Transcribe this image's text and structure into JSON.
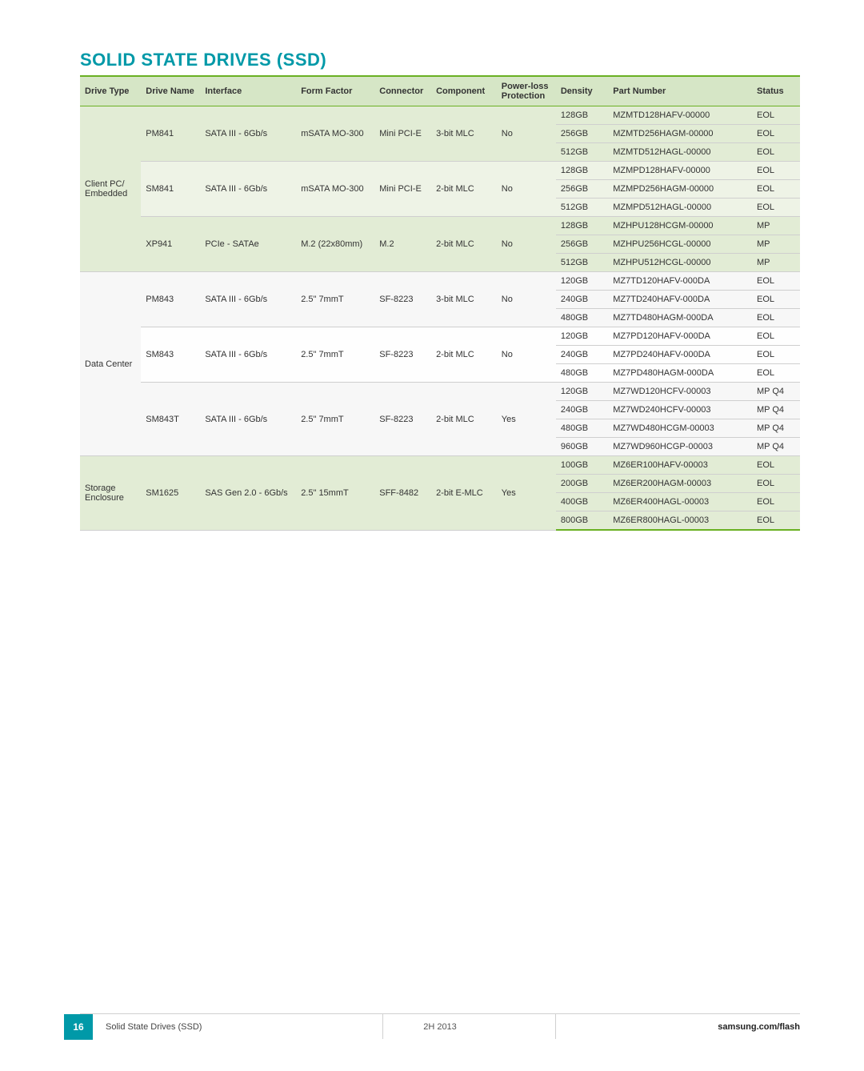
{
  "title": "SOLID STATE DRIVES (SSD)",
  "headers": {
    "type": "Drive Type",
    "name": "Drive Name",
    "interface": "Interface",
    "form": "Form Factor",
    "conn": "Connector",
    "comp": "Component",
    "plp1": "Power-loss",
    "plp2": "Protection",
    "density": "Density",
    "pn": "Part Number",
    "status": "Status"
  },
  "groups": [
    {
      "type": "Client PC/ Embedded",
      "tints": [
        "tint-1",
        "tint-1",
        "tint-1",
        "tint-2",
        "tint-2",
        "tint-2",
        "tint-1",
        "tint-1",
        "tint-1"
      ],
      "drives": [
        {
          "name": "PM841",
          "interface": "SATA III - 6Gb/s",
          "form": "mSATA MO-300",
          "conn": "Mini PCI-E",
          "comp": "3-bit MLC",
          "plp": "No",
          "variants": [
            {
              "density": "128GB",
              "pn": "MZMTD128HAFV-00000",
              "status": "EOL"
            },
            {
              "density": "256GB",
              "pn": "MZMTD256HAGM-00000",
              "status": "EOL"
            },
            {
              "density": "512GB",
              "pn": "MZMTD512HAGL-00000",
              "status": "EOL"
            }
          ]
        },
        {
          "name": "SM841",
          "interface": "SATA III - 6Gb/s",
          "form": "mSATA MO-300",
          "conn": "Mini PCI-E",
          "comp": "2-bit MLC",
          "plp": "No",
          "variants": [
            {
              "density": "128GB",
              "pn": "MZMPD128HAFV-00000",
              "status": "EOL"
            },
            {
              "density": "256GB",
              "pn": "MZMPD256HAGM-00000",
              "status": "EOL"
            },
            {
              "density": "512GB",
              "pn": "MZMPD512HAGL-00000",
              "status": "EOL"
            }
          ]
        },
        {
          "name": "XP941",
          "interface": "PCIe - SATAe",
          "form": "M.2 (22x80mm)",
          "conn": "M.2",
          "comp": "2-bit MLC",
          "plp": "No",
          "variants": [
            {
              "density": "128GB",
              "pn": "MZHPU128HCGM-00000",
              "status": "MP"
            },
            {
              "density": "256GB",
              "pn": "MZHPU256HCGL-00000",
              "status": "MP"
            },
            {
              "density": "512GB",
              "pn": "MZHPU512HCGL-00000",
              "status": "MP"
            }
          ]
        }
      ]
    },
    {
      "type": "Data Center",
      "tints": [
        "tint-3",
        "tint-3",
        "tint-3",
        "tint-4",
        "tint-4",
        "tint-4",
        "tint-3",
        "tint-3",
        "tint-3",
        "tint-3"
      ],
      "drives": [
        {
          "name": "PM843",
          "interface": "SATA III - 6Gb/s",
          "form": "2.5\" 7mmT",
          "conn": "SF-8223",
          "comp": "3-bit MLC",
          "plp": "No",
          "variants": [
            {
              "density": "120GB",
              "pn": "MZ7TD120HAFV-000DA",
              "status": "EOL"
            },
            {
              "density": "240GB",
              "pn": "MZ7TD240HAFV-000DA",
              "status": "EOL"
            },
            {
              "density": "480GB",
              "pn": "MZ7TD480HAGM-000DA",
              "status": "EOL"
            }
          ]
        },
        {
          "name": "SM843",
          "interface": "SATA III - 6Gb/s",
          "form": "2.5\" 7mmT",
          "conn": "SF-8223",
          "comp": "2-bit MLC",
          "plp": "No",
          "variants": [
            {
              "density": "120GB",
              "pn": "MZ7PD120HAFV-000DA",
              "status": "EOL"
            },
            {
              "density": "240GB",
              "pn": "MZ7PD240HAFV-000DA",
              "status": "EOL"
            },
            {
              "density": "480GB",
              "pn": "MZ7PD480HAGM-000DA",
              "status": "EOL"
            }
          ]
        },
        {
          "name": "SM843T",
          "interface": "SATA III - 6Gb/s",
          "form": "2.5\" 7mmT",
          "conn": "SF-8223",
          "comp": "2-bit MLC",
          "plp": "Yes",
          "variants": [
            {
              "density": "120GB",
              "pn": "MZ7WD120HCFV-00003",
              "status": "MP Q4"
            },
            {
              "density": "240GB",
              "pn": "MZ7WD240HCFV-00003",
              "status": "MP Q4"
            },
            {
              "density": "480GB",
              "pn": "MZ7WD480HCGM-00003",
              "status": "MP Q4"
            },
            {
              "density": "960GB",
              "pn": "MZ7WD960HCGP-00003",
              "status": "MP Q4"
            }
          ]
        }
      ]
    },
    {
      "type": "Storage Enclosure",
      "tints": [
        "tint-7",
        "tint-7",
        "tint-7",
        "tint-7"
      ],
      "drives": [
        {
          "name": "SM1625",
          "interface": "SAS Gen 2.0 - 6Gb/s",
          "form": "2.5\" 15mmT",
          "conn": "SFF-8482",
          "comp": "2-bit E-MLC",
          "plp": "Yes",
          "variants": [
            {
              "density": "100GB",
              "pn": "MZ6ER100HAFV-00003",
              "status": "EOL"
            },
            {
              "density": "200GB",
              "pn": "MZ6ER200HAGM-00003",
              "status": "EOL"
            },
            {
              "density": "400GB",
              "pn": "MZ6ER400HAGL-00003",
              "status": "EOL"
            },
            {
              "density": "800GB",
              "pn": "MZ6ER800HAGL-00003",
              "status": "EOL"
            }
          ]
        }
      ]
    }
  ],
  "footer": {
    "page": "16",
    "section": "Solid State Drives (SSD)",
    "period": "2H 2013",
    "url": "samsung.com/flash"
  }
}
